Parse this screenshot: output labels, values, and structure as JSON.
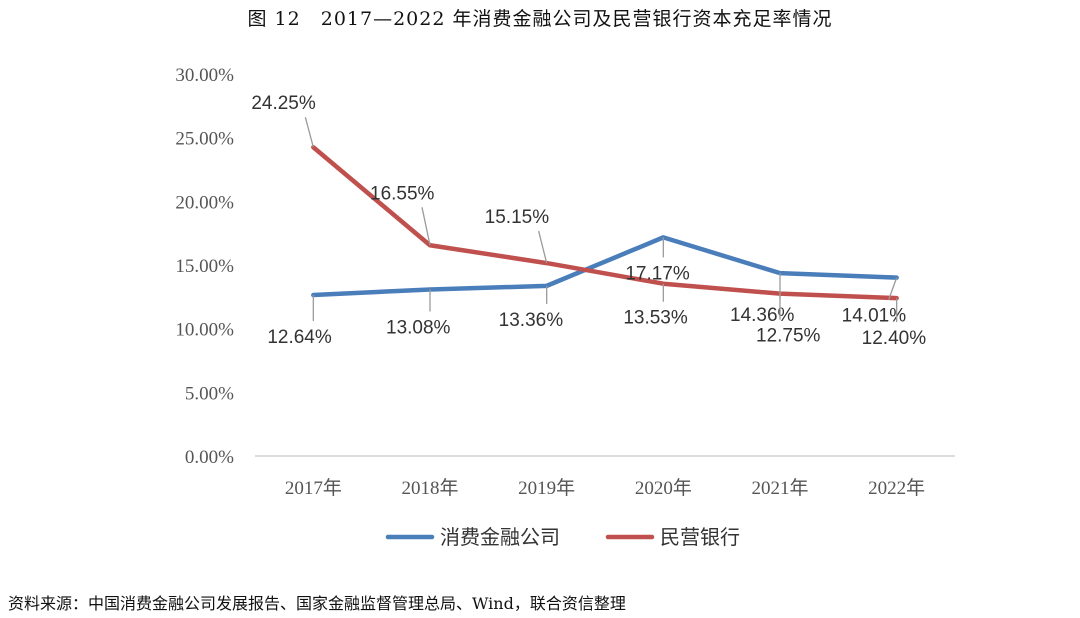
{
  "page": {
    "title": "图 12　2017—2022 年消费金融公司及民营银行资本充足率情况",
    "source": "资料来源：中国消费金融公司发展报告、国家金融监督管理总局、Wind，联合资信整理"
  },
  "chart_data": {
    "type": "line",
    "categories": [
      "2017年",
      "2018年",
      "2019年",
      "2020年",
      "2021年",
      "2022年"
    ],
    "series": [
      {
        "name": "消费金融公司",
        "color": "#4a7ebb",
        "values": [
          12.64,
          13.08,
          13.36,
          17.17,
          14.36,
          14.01
        ],
        "labels": [
          "12.64%",
          "13.08%",
          "13.36%",
          "17.17%",
          "14.36%",
          "14.01%"
        ]
      },
      {
        "name": "民营银行",
        "color": "#c0504d",
        "values": [
          24.25,
          16.55,
          15.15,
          13.53,
          12.75,
          12.4
        ],
        "labels": [
          "24.25%",
          "16.55%",
          "15.15%",
          "13.53%",
          "12.75%",
          "12.40%"
        ]
      }
    ],
    "ylim": [
      0,
      30
    ],
    "yticks": [
      0,
      5,
      10,
      15,
      20,
      25,
      30
    ],
    "ytick_labels": [
      "0.00%",
      "5.00%",
      "10.00%",
      "15.00%",
      "20.00%",
      "25.00%",
      "30.00%"
    ],
    "grid": false,
    "legend": "bottom"
  }
}
